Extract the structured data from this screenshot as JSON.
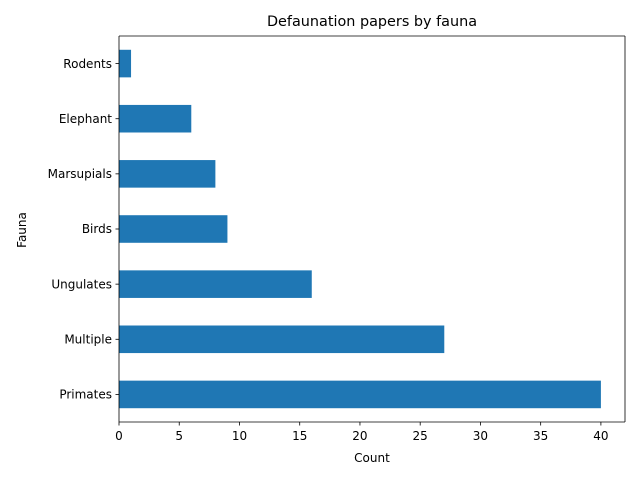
{
  "chart_data": {
    "type": "bar",
    "orientation": "horizontal",
    "title": "Defaunation papers by fauna",
    "xlabel": "Count",
    "ylabel": "Fauna",
    "categories": [
      "Primates",
      "Multiple",
      "Ungulates",
      "Birds",
      "Marsupials",
      "Elephant",
      "Rodents"
    ],
    "values": [
      40,
      27,
      16,
      9,
      8,
      6,
      1
    ],
    "xlim": [
      0,
      42
    ],
    "xticks": [
      0,
      5,
      10,
      15,
      20,
      25,
      30,
      35,
      40
    ],
    "grid": false,
    "legend": "none",
    "bar_color": "#1f77b4"
  }
}
